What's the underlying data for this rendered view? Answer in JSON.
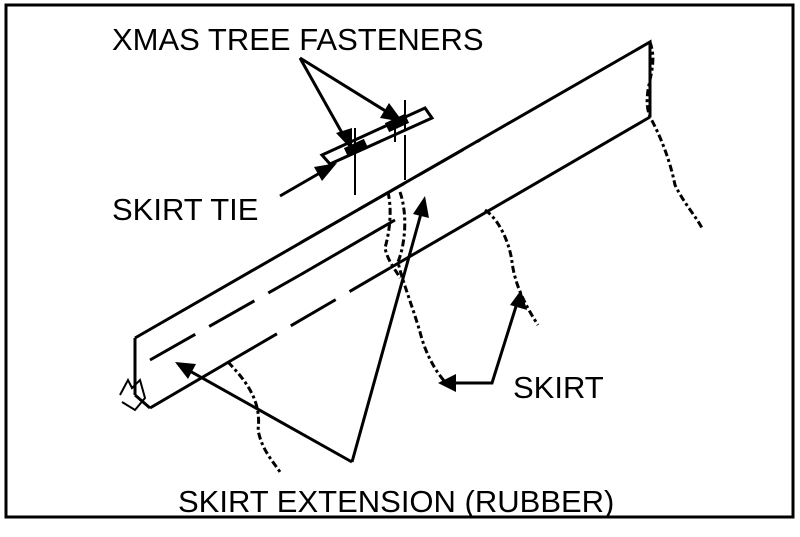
{
  "labels": {
    "fasteners": "XMAS TREE FASTENERS",
    "skirt_tie": "SKIRT TIE",
    "skirt": "SKIRT",
    "skirt_extension": "SKIRT EXTENSION (RUBBER)"
  }
}
